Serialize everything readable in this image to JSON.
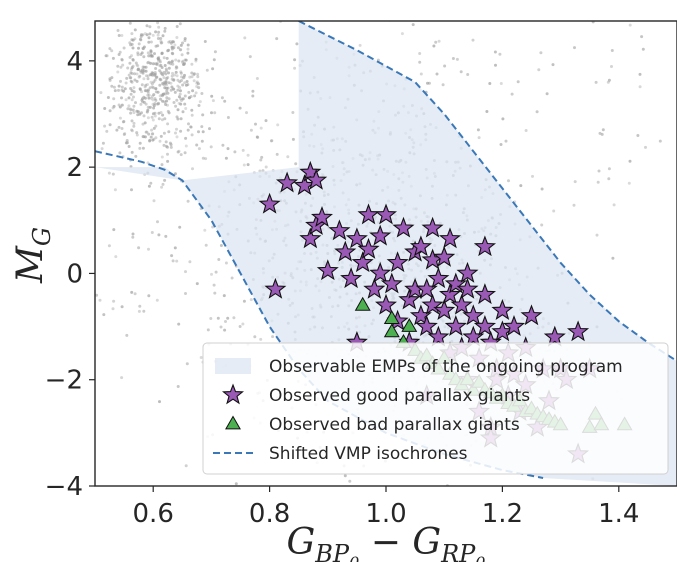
{
  "chart_data": {
    "type": "scatter",
    "xlabel": "G_{BP_0} - G_{RP_0}",
    "ylabel": "M_G",
    "xlim": [
      0.5,
      1.5
    ],
    "ylim": [
      4.75,
      -4.0
    ],
    "y_inverted": true,
    "xticks": [
      "0.6",
      "0.8",
      "1.0",
      "1.2",
      "1.4"
    ],
    "yticks": [
      "−4",
      "−2",
      "0",
      "2",
      "4"
    ],
    "legend_position": "lower-right",
    "legend": [
      {
        "label": "Observable EMPs of the ongoing program",
        "marker": "band",
        "color": "#dce6f2"
      },
      {
        "label": "Observed good parallax giants",
        "marker": "star",
        "color": "#9b59b6"
      },
      {
        "label": "Observed bad parallax giants",
        "marker": "triangle",
        "color": "#4caf50"
      },
      {
        "label": "Shifted VMP isochrones",
        "marker": "dashed-line",
        "color": "#3a78b8"
      }
    ],
    "colors": {
      "band": "#dce6f2",
      "isochrone": "#3a78b8",
      "good_giants": "#9b59b6",
      "bad_giants": "#4caf50",
      "background_stars": "#9e9e9e"
    },
    "series": [
      {
        "name": "Shifted VMP isochrones (upper)",
        "kind": "dashed-line",
        "x": [
          0.5,
          0.58,
          0.62,
          0.65,
          0.7,
          0.75,
          0.8,
          0.85,
          0.9,
          1.0,
          1.1,
          1.2,
          1.27
        ],
        "y": [
          2.3,
          2.1,
          1.95,
          1.75,
          1.0,
          0.0,
          -1.0,
          -1.8,
          -2.4,
          -3.0,
          -3.4,
          -3.7,
          -3.85
        ]
      },
      {
        "name": "Shifted VMP isochrones (lower)",
        "kind": "dashed-line",
        "x": [
          0.85,
          0.95,
          1.05,
          1.1,
          1.15,
          1.2,
          1.25,
          1.3,
          1.35,
          1.4,
          1.45,
          1.5
        ],
        "y": [
          4.75,
          4.2,
          3.6,
          3.0,
          2.3,
          1.6,
          0.9,
          0.2,
          -0.4,
          -0.9,
          -1.3,
          -1.65
        ]
      },
      {
        "name": "Observable EMPs of the ongoing program",
        "kind": "band",
        "x_upper": [
          0.65,
          0.7,
          0.75,
          0.8,
          0.85,
          0.9,
          1.0,
          1.1,
          1.2,
          1.27,
          1.5
        ],
        "y_upper": [
          1.75,
          1.0,
          0.0,
          -1.0,
          -1.8,
          -2.4,
          -3.0,
          -3.4,
          -3.7,
          -3.85,
          -4.0
        ],
        "x_lower": [
          0.5,
          0.58,
          0.62,
          0.65
        ],
        "y_lower": [
          2.0,
          2.0,
          2.0,
          1.75
        ]
      },
      {
        "name": "Observed good parallax giants",
        "kind": "star",
        "points": [
          [
            0.81,
            -0.3
          ],
          [
            0.8,
            1.3
          ],
          [
            0.83,
            1.7
          ],
          [
            0.86,
            1.65
          ],
          [
            0.87,
            0.65
          ],
          [
            0.88,
            0.9
          ],
          [
            0.89,
            1.05
          ],
          [
            0.87,
            1.9
          ],
          [
            0.88,
            1.75
          ],
          [
            0.9,
            0.05
          ],
          [
            0.92,
            0.8
          ],
          [
            0.93,
            0.4
          ],
          [
            0.94,
            -0.1
          ],
          [
            0.95,
            -1.3
          ],
          [
            0.95,
            0.65
          ],
          [
            0.96,
            0.2
          ],
          [
            0.97,
            0.45
          ],
          [
            0.97,
            1.1
          ],
          [
            0.98,
            -0.3
          ],
          [
            0.99,
            0.0
          ],
          [
            0.99,
            0.7
          ],
          [
            1.0,
            -0.6
          ],
          [
            1.0,
            1.1
          ],
          [
            1.01,
            -0.2
          ],
          [
            1.02,
            -0.9
          ],
          [
            1.02,
            0.2
          ],
          [
            1.03,
            0.85
          ],
          [
            1.04,
            -0.5
          ],
          [
            1.04,
            -1.3
          ],
          [
            1.05,
            -0.3
          ],
          [
            1.05,
            0.4
          ],
          [
            1.06,
            -0.8
          ],
          [
            1.06,
            0.5
          ],
          [
            1.07,
            -1.0
          ],
          [
            1.07,
            -0.3
          ],
          [
            1.07,
            -2.3
          ],
          [
            1.08,
            -0.6
          ],
          [
            1.08,
            0.25
          ],
          [
            1.08,
            0.85
          ],
          [
            1.09,
            -1.2
          ],
          [
            1.09,
            -0.1
          ],
          [
            1.1,
            -0.7
          ],
          [
            1.1,
            0.3
          ],
          [
            1.11,
            -1.5
          ],
          [
            1.11,
            -0.4
          ],
          [
            1.11,
            0.65
          ],
          [
            1.12,
            -1.0
          ],
          [
            1.12,
            -0.2
          ],
          [
            1.13,
            -0.6
          ],
          [
            1.13,
            -1.4
          ],
          [
            1.14,
            -2.0
          ],
          [
            1.14,
            -0.3
          ],
          [
            1.14,
            0.0
          ],
          [
            1.15,
            -1.2
          ],
          [
            1.15,
            -0.8
          ],
          [
            1.16,
            -2.6
          ],
          [
            1.16,
            -1.6
          ],
          [
            1.17,
            -1.0
          ],
          [
            1.17,
            -0.4
          ],
          [
            1.17,
            0.5
          ],
          [
            1.18,
            -2.9
          ],
          [
            1.18,
            -3.1
          ],
          [
            1.18,
            -1.3
          ],
          [
            1.19,
            -2.0
          ],
          [
            1.19,
            -1.8
          ],
          [
            1.2,
            -1.1
          ],
          [
            1.2,
            -0.7
          ],
          [
            1.21,
            -2.3
          ],
          [
            1.21,
            -1.5
          ],
          [
            1.22,
            -1.0
          ],
          [
            1.22,
            -1.9
          ],
          [
            1.23,
            -2.6
          ],
          [
            1.24,
            -2.1
          ],
          [
            1.24,
            -1.4
          ],
          [
            1.25,
            -0.8
          ],
          [
            1.26,
            -2.9
          ],
          [
            1.27,
            -1.8
          ],
          [
            1.28,
            -2.4
          ],
          [
            1.29,
            -1.2
          ],
          [
            1.3,
            -1.8
          ],
          [
            1.31,
            -2.0
          ],
          [
            1.33,
            -3.4
          ],
          [
            1.33,
            -1.1
          ],
          [
            1.35,
            -1.8
          ]
        ]
      },
      {
        "name": "Observed bad parallax giants",
        "kind": "triangle",
        "points": [
          [
            0.96,
            -0.6
          ],
          [
            1.01,
            -0.85
          ],
          [
            1.01,
            -1.1
          ],
          [
            1.03,
            -1.3
          ],
          [
            1.04,
            -1.0
          ],
          [
            1.05,
            -1.45
          ],
          [
            1.06,
            -1.6
          ],
          [
            1.07,
            -1.55
          ],
          [
            1.08,
            -1.7
          ],
          [
            1.09,
            -1.8
          ],
          [
            1.1,
            -1.6
          ],
          [
            1.11,
            -1.9
          ],
          [
            1.12,
            -2.0
          ],
          [
            1.13,
            -2.1
          ],
          [
            1.14,
            -2.0
          ],
          [
            1.15,
            -2.2
          ],
          [
            1.16,
            -2.05
          ],
          [
            1.17,
            -2.2
          ],
          [
            1.18,
            -2.25
          ],
          [
            1.19,
            -2.35
          ],
          [
            1.2,
            -2.3
          ],
          [
            1.21,
            -2.45
          ],
          [
            1.22,
            -2.5
          ],
          [
            1.23,
            -2.4
          ],
          [
            1.24,
            -2.6
          ],
          [
            1.25,
            -2.55
          ],
          [
            1.26,
            -2.65
          ],
          [
            1.27,
            -2.7
          ],
          [
            1.28,
            -2.75
          ],
          [
            1.29,
            -2.8
          ],
          [
            1.3,
            -2.85
          ],
          [
            1.35,
            -2.9
          ],
          [
            1.36,
            -2.65
          ],
          [
            1.37,
            -2.85
          ],
          [
            1.41,
            -2.85
          ]
        ]
      }
    ]
  }
}
